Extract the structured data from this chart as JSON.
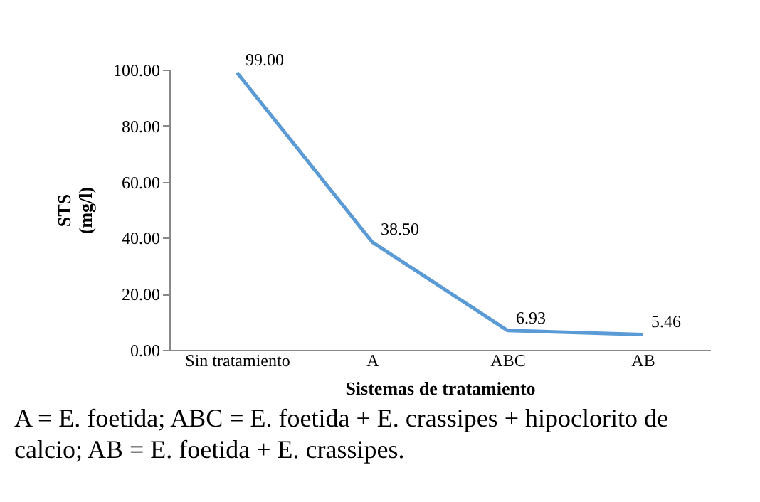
{
  "chart_data": {
    "type": "line",
    "xlabel": "Sistemas de tratamiento",
    "ylabel": "STS (mg/l)",
    "categories": [
      "Sin tratamiento",
      "A",
      "ABC",
      "AB"
    ],
    "series": [
      {
        "color": "#5b9bd5",
        "values": [
          99.0,
          38.5,
          6.93,
          5.46
        ]
      }
    ],
    "value_labels": [
      "99.00",
      "38.50",
      "6.93",
      "5.46"
    ],
    "ylim": [
      0,
      100
    ],
    "yticks": [
      {
        "value": 0,
        "label": "0.00"
      },
      {
        "value": 20,
        "label": "20.00"
      },
      {
        "value": 40,
        "label": "40.00"
      },
      {
        "value": 60,
        "label": "60.00"
      },
      {
        "value": 80,
        "label": "80.00"
      },
      {
        "value": 100,
        "label": "100.00"
      }
    ],
    "line_style": "solid",
    "annotations": [
      "A = E. foetida; ABC = E. foetida + E. crassipes + hipoclorito de calcio; AB = E. foetida + E. crassipes."
    ]
  }
}
